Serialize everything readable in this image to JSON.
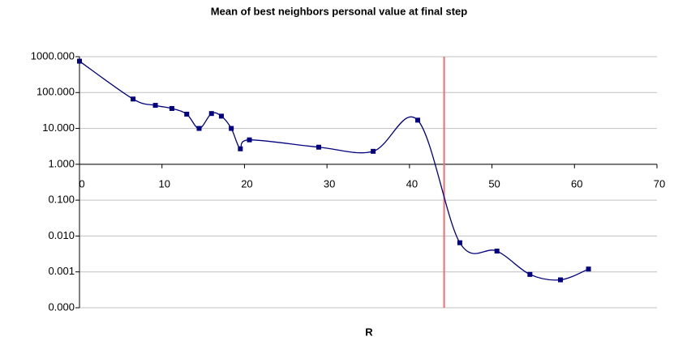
{
  "chart_data": {
    "type": "line",
    "title": "Mean of best neighbors personal value at final step",
    "x_label": "R",
    "log_y": true,
    "grid": true,
    "series": [
      {
        "color": "#000080",
        "x": [
          0,
          6.5,
          9.2,
          11.2,
          13,
          14.5,
          16,
          17.2,
          18.4,
          19.5,
          20.6,
          29,
          35.6,
          41,
          46.1,
          50.6,
          54.6,
          58.3,
          61.7
        ],
        "values": [
          750,
          66,
          44,
          36,
          25,
          10,
          26,
          22,
          10,
          2.7,
          4.8,
          3,
          2.3,
          17,
          0.0065,
          0.0038,
          0.00085,
          0.0006,
          0.0012
        ]
      }
    ],
    "reference_line": {
      "x": 44.2,
      "color": "#e87070"
    },
    "xlim": [
      0,
      70
    ],
    "xticks": [
      0,
      10,
      20,
      30,
      40,
      50,
      60,
      70
    ],
    "ylim": [
      0.0001,
      1000
    ],
    "yticks": [
      {
        "value": 1000,
        "label": "1000.000"
      },
      {
        "value": 100,
        "label": "100.000"
      },
      {
        "value": 10,
        "label": "10.000"
      },
      {
        "value": 1,
        "label": "1.000"
      },
      {
        "value": 0.1,
        "label": "0.100"
      },
      {
        "value": 0.01,
        "label": "0.010"
      },
      {
        "value": 0.001,
        "label": "0.001"
      },
      {
        "value": 0.0001,
        "label": "0.000"
      }
    ],
    "x_axis_crosses": 1
  }
}
